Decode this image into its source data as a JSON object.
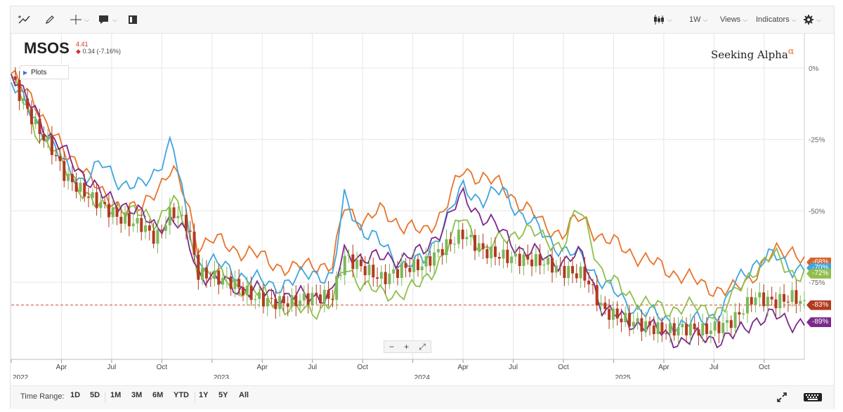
{
  "toolbar": {
    "interval": "1W",
    "views": "Views",
    "indicators": "Indicators"
  },
  "symbol": {
    "ticker": "MSOS",
    "price": "4.41",
    "change": "0.34 (-7.16%)"
  },
  "plots_label": "Plots",
  "brand": {
    "name": "Seeking Alpha",
    "mark": "α"
  },
  "zoom": {
    "minus": "−",
    "plus": "+",
    "expand": "⤢"
  },
  "bottom": {
    "time_range_label": "Time Range:",
    "ranges": [
      "1D",
      "5D",
      "1M",
      "3M",
      "6M",
      "YTD",
      "1Y",
      "5Y",
      "All"
    ]
  },
  "colors": {
    "candle_up": "#7cb85b",
    "candle_down": "#b23a1e",
    "orange": "#e8742a",
    "blue": "#3fa6dc",
    "green": "#8fbf4a",
    "purple": "#7b2a8c",
    "grid": "#e6e6e6",
    "refline": "#c8502a"
  },
  "chart_data": {
    "type": "line",
    "title": "",
    "x_ticks": [
      "2022",
      "Apr",
      "Jul",
      "Oct",
      "2023",
      "Apr",
      "Jul",
      "Oct",
      "2024",
      "Apr",
      "Jul",
      "Oct",
      "2025",
      "Apr",
      "Jul",
      "Oct"
    ],
    "x_range": [
      2022.0,
      2025.95
    ],
    "y_ticks": [
      "0%",
      "-25%",
      "-50%",
      "-75%"
    ],
    "y_tick_values": [
      0,
      -25,
      -50,
      -75
    ],
    "ylim": [
      -102,
      12
    ],
    "reference_line": -83,
    "x": [
      2022.0,
      2022.06,
      2022.12,
      2022.2,
      2022.27,
      2022.35,
      2022.45,
      2022.55,
      2022.65,
      2022.72,
      2022.8,
      2022.88,
      2022.93,
      2023.0,
      2023.1,
      2023.2,
      2023.3,
      2023.4,
      2023.5,
      2023.6,
      2023.66,
      2023.75,
      2023.85,
      2023.95,
      2024.05,
      2024.15,
      2024.25,
      2024.35,
      2024.45,
      2024.55,
      2024.65,
      2024.75,
      2024.82,
      2024.85,
      2024.95,
      2025.05,
      2025.15,
      2025.25,
      2025.35,
      2025.45,
      2025.55,
      2025.6,
      2025.7,
      2025.8,
      2025.9,
      2025.95
    ],
    "series": [
      {
        "name": "",
        "label": "-68%",
        "color": "orange",
        "values": [
          -2,
          -8,
          -12,
          -22,
          -31,
          -33,
          -45,
          -48,
          -50,
          -42,
          -35,
          -48,
          -62,
          -60,
          -63,
          -65,
          -68,
          -71,
          -68,
          -70,
          -48,
          -54,
          -50,
          -55,
          -58,
          -50,
          -36,
          -38,
          -42,
          -48,
          -55,
          -58,
          -53,
          -53,
          -60,
          -63,
          -67,
          -70,
          -73,
          -76,
          -78,
          -78,
          -72,
          -65,
          -63,
          -68
        ]
      },
      {
        "name": "",
        "label": "-70%",
        "color": "blue",
        "values": [
          -5,
          -12,
          -18,
          -26,
          -35,
          -39,
          -34,
          -40,
          -42,
          -36,
          -25,
          -55,
          -68,
          -68,
          -71,
          -74,
          -76,
          -75,
          -71,
          -74,
          -45,
          -57,
          -62,
          -69,
          -68,
          -55,
          -42,
          -46,
          -43,
          -52,
          -58,
          -64,
          -66,
          -67,
          -75,
          -82,
          -85,
          -88,
          -90,
          -88,
          -84,
          -76,
          -68,
          -66,
          -70,
          -70
        ]
      },
      {
        "name": "",
        "label": "-72%",
        "color": "green",
        "values": [
          -3,
          -12,
          -22,
          -27,
          -36,
          -42,
          -50,
          -48,
          -52,
          -54,
          -45,
          -58,
          -70,
          -72,
          -75,
          -78,
          -81,
          -85,
          -85,
          -82,
          -70,
          -75,
          -80,
          -78,
          -76,
          -65,
          -52,
          -64,
          -60,
          -56,
          -60,
          -62,
          -50,
          -52,
          -73,
          -78,
          -82,
          -85,
          -83,
          -85,
          -84,
          -80,
          -70,
          -66,
          -72,
          -72
        ]
      },
      {
        "name": "",
        "label": "-89%",
        "color": "purple",
        "values": [
          -2,
          -10,
          -14,
          -25,
          -30,
          -36,
          -45,
          -47,
          -52,
          -55,
          -53,
          -60,
          -71,
          -74,
          -76,
          -78,
          -79,
          -80,
          -80,
          -79,
          -65,
          -66,
          -67,
          -66,
          -65,
          -55,
          -45,
          -52,
          -58,
          -64,
          -66,
          -68,
          -66,
          -66,
          -85,
          -88,
          -90,
          -93,
          -96,
          -94,
          -95,
          -94,
          -88,
          -87,
          -89,
          -89
        ]
      },
      {
        "name": "MSOS",
        "label": "-83%",
        "color": "candles",
        "values": [
          -3,
          -12,
          -20,
          -28,
          -38,
          -43,
          -48,
          -53,
          -55,
          -60,
          -50,
          -55,
          -72,
          -73,
          -75,
          -80,
          -82,
          -82,
          -80,
          -80,
          -66,
          -70,
          -74,
          -70,
          -69,
          -63,
          -58,
          -64,
          -66,
          -67,
          -68,
          -71,
          -72,
          -72,
          -85,
          -88,
          -90,
          -92,
          -91,
          -92,
          -90,
          -88,
          -80,
          -82,
          -80,
          -83
        ]
      }
    ]
  }
}
